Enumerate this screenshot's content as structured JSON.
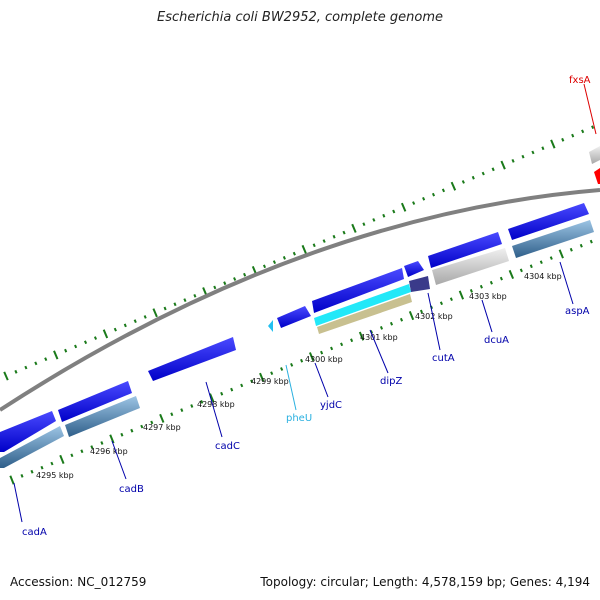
{
  "title": "Escherichia coli BW2952, complete genome",
  "footer": {
    "accession": "Accession: NC_012759",
    "summary": "Topology: circular; Length: 4,578,159 bp; Genes: 4,194"
  },
  "ticks": [
    "4295 kbp",
    "4296 kbp",
    "4297 kbp",
    "4298 kbp",
    "4299 kbp",
    "4300 kbp",
    "4301 kbp",
    "4302 kbp",
    "4303 kbp",
    "4304 kbp"
  ],
  "genes": [
    {
      "name": "cadA",
      "color": "#0000aa"
    },
    {
      "name": "cadB",
      "color": "#0000aa"
    },
    {
      "name": "cadC",
      "color": "#0000aa"
    },
    {
      "name": "pheU",
      "color": "#2ab0e0"
    },
    {
      "name": "yjdC",
      "color": "#0000aa"
    },
    {
      "name": "dipZ",
      "color": "#0000aa"
    },
    {
      "name": "cutA",
      "color": "#0000aa"
    },
    {
      "name": "dcuA",
      "color": "#0000aa"
    },
    {
      "name": "aspA",
      "color": "#0000aa"
    },
    {
      "name": "fxsA",
      "color": "#dd0000"
    }
  ],
  "colors": {
    "cds": "#1010e0",
    "gene": "#4a7fb0",
    "trna": "#22d8f0",
    "misc": "#c8c8c8",
    "backbone": "#808080",
    "ticks": "#1a7a1a",
    "highlight": "#ff0000"
  }
}
